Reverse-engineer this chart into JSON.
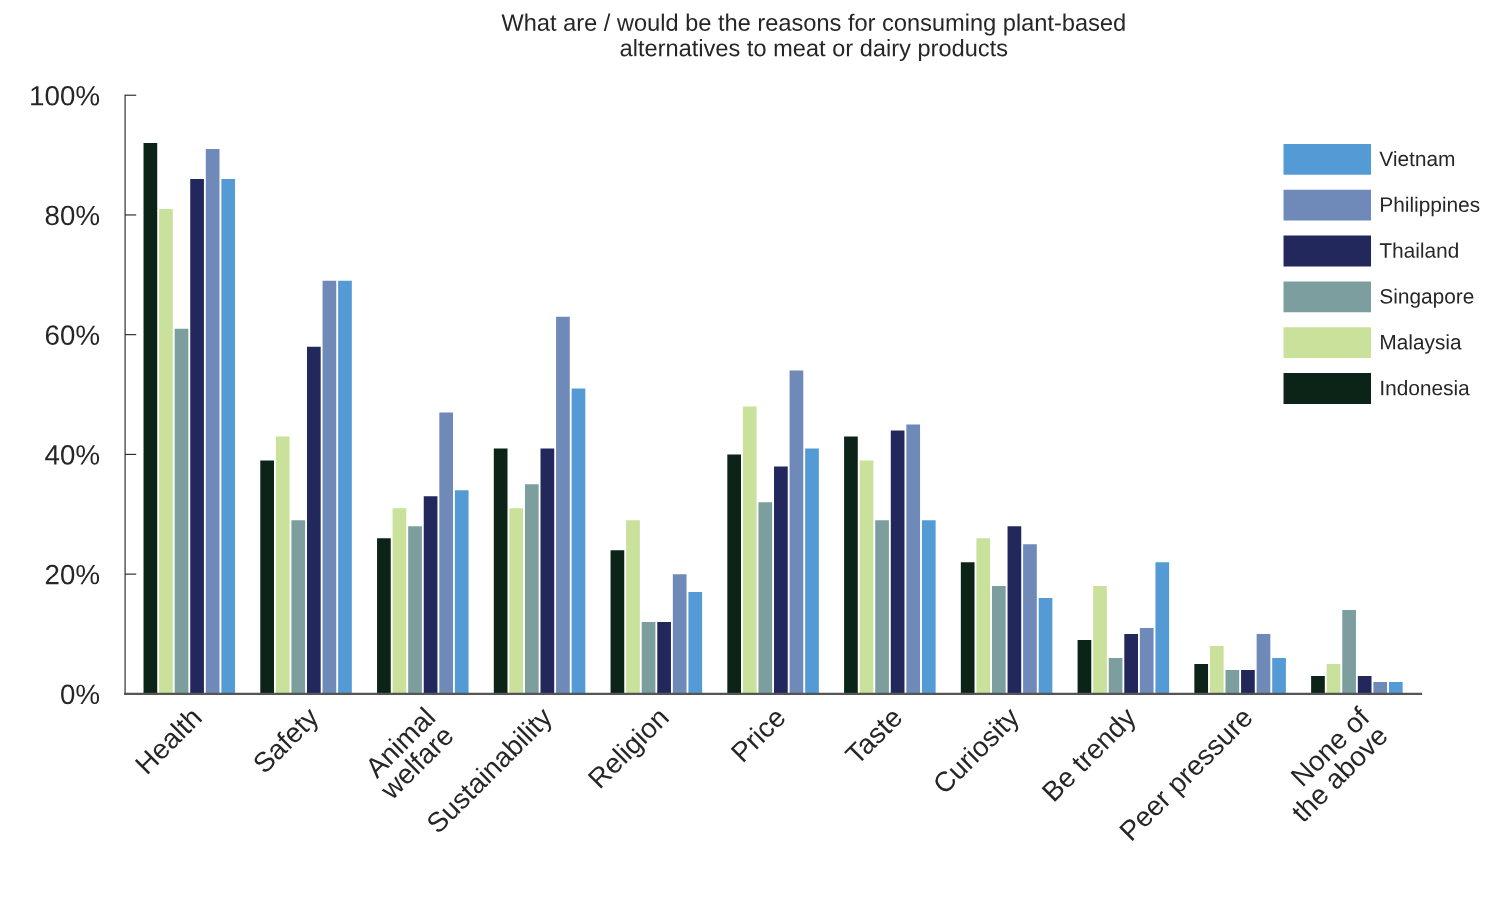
{
  "chart_data": {
    "type": "bar",
    "title": "What are / would be the reasons for consuming plant-based\nalternatives to meat or dairy products",
    "categories": [
      "Health",
      "Safety",
      "Animal\nwelfare",
      "Sustainability",
      "Religion",
      "Price",
      "Taste",
      "Curiosity",
      "Be trendy",
      "Peer pressure",
      "None of\nthe above"
    ],
    "series": [
      {
        "name": "Indonesia",
        "color": "#0c2318",
        "values": [
          92,
          39,
          26,
          41,
          24,
          40,
          43,
          22,
          9,
          5,
          3
        ]
      },
      {
        "name": "Malaysia",
        "color": "#c9e19a",
        "values": [
          81,
          43,
          31,
          31,
          29,
          48,
          39,
          26,
          18,
          8,
          5
        ]
      },
      {
        "name": "Singapore",
        "color": "#7c9e9e",
        "values": [
          61,
          29,
          28,
          35,
          12,
          32,
          29,
          18,
          6,
          4,
          14
        ]
      },
      {
        "name": "Thailand",
        "color": "#22285c",
        "values": [
          86,
          58,
          33,
          41,
          12,
          38,
          44,
          28,
          10,
          4,
          3
        ]
      },
      {
        "name": "Philippines",
        "color": "#6f8ab8",
        "values": [
          91,
          69,
          47,
          63,
          20,
          54,
          45,
          25,
          11,
          10,
          2
        ]
      },
      {
        "name": "Vietnam",
        "color": "#549bd6",
        "values": [
          86,
          69,
          34,
          51,
          17,
          41,
          29,
          16,
          22,
          6,
          2
        ]
      }
    ],
    "ylim": [
      0,
      100
    ],
    "yticks": [
      {
        "value": 0,
        "label": "0%"
      },
      {
        "value": 20,
        "label": "20%"
      },
      {
        "value": 40,
        "label": "40%"
      },
      {
        "value": 60,
        "label": "60%"
      },
      {
        "value": 80,
        "label": "80%"
      },
      {
        "value": 100,
        "label": "100%"
      }
    ],
    "grid": false,
    "legend": "top right"
  }
}
